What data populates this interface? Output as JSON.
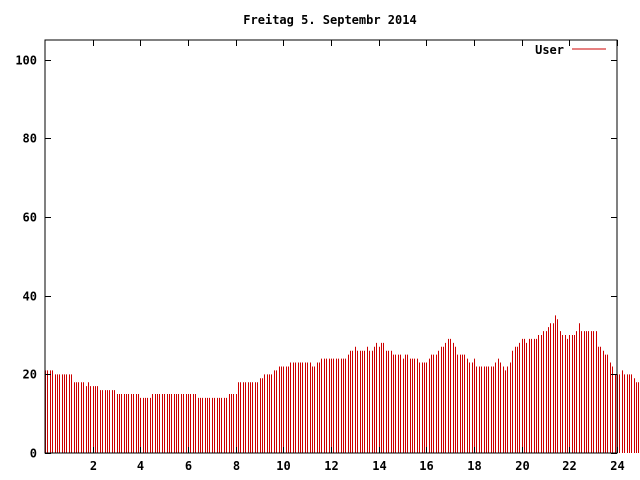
{
  "chart_data": {
    "type": "bar",
    "title": "Freitag 5. Septembr 2014",
    "xlabel": "",
    "ylabel": "",
    "xlim": [
      0,
      24
    ],
    "ylim": [
      0,
      105
    ],
    "grid": false,
    "legend_position": "top-right",
    "x_ticks": [
      {
        "value": 2,
        "label": "2"
      },
      {
        "value": 4,
        "label": "4"
      },
      {
        "value": 6,
        "label": "6"
      },
      {
        "value": 8,
        "label": "8"
      },
      {
        "value": 10,
        "label": "10"
      },
      {
        "value": 12,
        "label": "12"
      },
      {
        "value": 14,
        "label": "14"
      },
      {
        "value": 16,
        "label": "16"
      },
      {
        "value": 18,
        "label": "18"
      },
      {
        "value": 20,
        "label": "20"
      },
      {
        "value": 22,
        "label": "22"
      },
      {
        "value": 24,
        "label": "24"
      }
    ],
    "y_ticks": [
      {
        "value": 0,
        "label": "0"
      },
      {
        "value": 20,
        "label": "20"
      },
      {
        "value": 40,
        "label": "40"
      },
      {
        "value": 60,
        "label": "60"
      },
      {
        "value": 80,
        "label": "80"
      },
      {
        "value": 100,
        "label": "100"
      }
    ],
    "series": [
      {
        "name": "User",
        "color": "#cc0000",
        "x_start": 0,
        "x_step": 0.1,
        "values": [
          21,
          21,
          21,
          21,
          20,
          20,
          20,
          20,
          20,
          20,
          20,
          20,
          18,
          18,
          18,
          18,
          18,
          17,
          18,
          17,
          17,
          17,
          17,
          16,
          16,
          16,
          16,
          16,
          16,
          16,
          15,
          15,
          15,
          15,
          15,
          15,
          15,
          15,
          15,
          15,
          14,
          14,
          14,
          14,
          14,
          15,
          15,
          15,
          15,
          15,
          15,
          15,
          15,
          15,
          15,
          15,
          15,
          15,
          15,
          15,
          15,
          15,
          15,
          15,
          14,
          14,
          14,
          14,
          14,
          14,
          14,
          14,
          14,
          14,
          14,
          14,
          14,
          15,
          15,
          15,
          15,
          18,
          18,
          18,
          18,
          18,
          18,
          18,
          18,
          18,
          19,
          19,
          20,
          20,
          20,
          20,
          21,
          21,
          22,
          22,
          22,
          22,
          22,
          23,
          23,
          23,
          23,
          23,
          23,
          23,
          23,
          23,
          22,
          22,
          23,
          23,
          24,
          24,
          24,
          24,
          24,
          24,
          24,
          24,
          24,
          24,
          24,
          25,
          26,
          26,
          27,
          26,
          26,
          26,
          26,
          27,
          26,
          26,
          27,
          28,
          27,
          28,
          28,
          26,
          26,
          26,
          25,
          25,
          25,
          25,
          24,
          25,
          25,
          24,
          24,
          24,
          24,
          23,
          23,
          23,
          23,
          24,
          25,
          25,
          25,
          26,
          27,
          27,
          28,
          29,
          29,
          28,
          27,
          25,
          25,
          25,
          25,
          24,
          23,
          23,
          24,
          22,
          22,
          22,
          22,
          22,
          22,
          22,
          22,
          23,
          24,
          23,
          22,
          21,
          22,
          23,
          26,
          27,
          27,
          28,
          29,
          29,
          28,
          29,
          29,
          29,
          29,
          30,
          30,
          31,
          31,
          32,
          33,
          33,
          35,
          34,
          31,
          30,
          30,
          29,
          30,
          30,
          30,
          31,
          33,
          31,
          31,
          31,
          31,
          31,
          31,
          31,
          27,
          27,
          26,
          25,
          25,
          23,
          22,
          20,
          20,
          20,
          21,
          20,
          20,
          20,
          20,
          19,
          18,
          18,
          18,
          18,
          17,
          17,
          17,
          17
        ]
      }
    ]
  }
}
